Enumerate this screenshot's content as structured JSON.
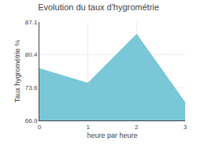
{
  "chart_data": {
    "type": "area",
    "title": "Evolution du taux d'hygrométrie",
    "xlabel": "heure par heure",
    "ylabel": "Taux hygrométrie %",
    "x": [
      0,
      1,
      2,
      3
    ],
    "values": [
      77.5,
      74.5,
      84.5,
      70.5
    ],
    "color": "#7ac7d8",
    "xlim": [
      0,
      3
    ],
    "xticks": [
      0,
      1,
      2,
      3
    ],
    "ylim": [
      66.9,
      87.1
    ],
    "yticks": [
      66.9,
      73.6,
      80.4,
      87.1
    ],
    "grid": true
  }
}
